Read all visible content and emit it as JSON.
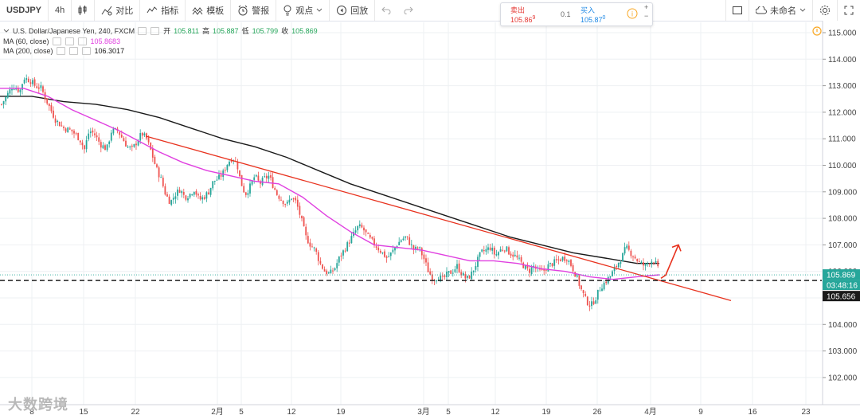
{
  "toolbar": {
    "symbol": "USDJPY",
    "interval": "4h",
    "compare_label": "对比",
    "indicators_label": "指标",
    "templates_label": "模板",
    "alert_label": "警报",
    "ideas_label": "观点",
    "replay_label": "回放",
    "layout_name": "未命名"
  },
  "trade": {
    "sell_label": "卖出",
    "sell_price": "105.86",
    "sell_sup": "9",
    "spread": "0.1",
    "buy_label": "买入",
    "buy_price": "105.87",
    "buy_sup": "0"
  },
  "legend": {
    "title": "U.S. Dollar/Japanese Yen, 240, FXCM",
    "open_label": "开",
    "open": "105.811",
    "high_label": "高",
    "high": "105.887",
    "low_label": "低",
    "low": "105.799",
    "close_label": "收",
    "close": "105.869",
    "ma60_label": "MA (60, close)",
    "ma60_value": "105.8683",
    "ma200_label": "MA (200, close)",
    "ma200_value": "106.3017"
  },
  "price_labels": {
    "last_price": "105.869",
    "countdown": "03:48:16",
    "line_price": "105.656"
  },
  "watermark": "大数跨境",
  "colors": {
    "up": "#26a69a",
    "down": "#ef5350",
    "ma60": "#e040e0",
    "ma200": "#1a1a1a",
    "trend": "#e8321e",
    "arrow": "#e8321e",
    "last_bg": "#26a69a",
    "line_bg": "#1a1a1a"
  },
  "chart_data": {
    "type": "candlestick",
    "y_axis": {
      "min": 101,
      "max": 115.2,
      "ticks": [
        "102.000",
        "103.000",
        "104.000",
        "105.000",
        "106.000",
        "107.000",
        "108.000",
        "109.000",
        "110.000",
        "111.000",
        "112.000",
        "113.000",
        "114.000",
        "115.000"
      ]
    },
    "x_axis": {
      "ticks": [
        "8",
        "15",
        "22",
        "2月",
        "5",
        "12",
        "19",
        "3月",
        "5",
        "12",
        "19",
        "26",
        "4月",
        "9",
        "16",
        "23"
      ]
    },
    "series": [
      {
        "name": "MA (60, close)",
        "last_value": 105.8683
      },
      {
        "name": "MA (200, close)",
        "last_value": 106.3017
      }
    ],
    "price_path": [
      [
        0,
        112.2
      ],
      [
        8,
        112.6
      ],
      [
        16,
        113.0
      ],
      [
        25,
        112.8
      ],
      [
        30,
        113.3
      ],
      [
        38,
        113.2
      ],
      [
        44,
        113.0
      ],
      [
        52,
        112.9
      ],
      [
        56,
        112.6
      ],
      [
        62,
        112.2
      ],
      [
        70,
        111.7
      ],
      [
        80,
        111.4
      ],
      [
        90,
        111.3
      ],
      [
        100,
        111.0
      ],
      [
        106,
        110.6
      ],
      [
        112,
        111.3
      ],
      [
        118,
        111.2
      ],
      [
        126,
        110.8
      ],
      [
        134,
        110.6
      ],
      [
        140,
        111.3
      ],
      [
        148,
        111.3
      ],
      [
        154,
        111.0
      ],
      [
        160,
        110.7
      ],
      [
        166,
        110.6
      ],
      [
        172,
        110.9
      ],
      [
        178,
        111.2
      ],
      [
        184,
        111.0
      ],
      [
        190,
        110.5
      ],
      [
        196,
        109.9
      ],
      [
        202,
        109.5
      ],
      [
        208,
        108.9
      ],
      [
        214,
        108.6
      ],
      [
        220,
        108.9
      ],
      [
        226,
        109.1
      ],
      [
        232,
        108.8
      ],
      [
        238,
        108.9
      ],
      [
        244,
        109.1
      ],
      [
        250,
        108.7
      ],
      [
        256,
        108.8
      ],
      [
        262,
        109.0
      ],
      [
        268,
        109.4
      ],
      [
        274,
        109.5
      ],
      [
        280,
        109.7
      ],
      [
        286,
        110.1
      ],
      [
        292,
        110.3
      ],
      [
        298,
        110.0
      ],
      [
        302,
        109.4
      ],
      [
        308,
        108.9
      ],
      [
        314,
        109.2
      ],
      [
        320,
        109.6
      ],
      [
        326,
        109.3
      ],
      [
        332,
        109.5
      ],
      [
        338,
        109.6
      ],
      [
        342,
        109.3
      ],
      [
        348,
        108.9
      ],
      [
        354,
        108.7
      ],
      [
        360,
        108.5
      ],
      [
        366,
        108.8
      ],
      [
        372,
        108.6
      ],
      [
        378,
        108.0
      ],
      [
        384,
        107.3
      ],
      [
        390,
        107.0
      ],
      [
        396,
        106.8
      ],
      [
        402,
        106.3
      ],
      [
        408,
        106.0
      ],
      [
        414,
        105.9
      ],
      [
        420,
        106.1
      ],
      [
        426,
        106.5
      ],
      [
        432,
        106.8
      ],
      [
        438,
        107.1
      ],
      [
        444,
        107.4
      ],
      [
        450,
        107.7
      ],
      [
        456,
        107.6
      ],
      [
        462,
        107.3
      ],
      [
        468,
        107.1
      ],
      [
        474,
        106.9
      ],
      [
        480,
        106.7
      ],
      [
        486,
        106.5
      ],
      [
        492,
        106.7
      ],
      [
        498,
        107.0
      ],
      [
        504,
        107.2
      ],
      [
        510,
        107.3
      ],
      [
        516,
        107.0
      ],
      [
        520,
        106.8
      ],
      [
        526,
        106.9
      ],
      [
        532,
        106.5
      ],
      [
        538,
        106.0
      ],
      [
        544,
        105.7
      ],
      [
        550,
        105.8
      ],
      [
        556,
        105.7
      ],
      [
        562,
        105.9
      ],
      [
        568,
        106.0
      ],
      [
        574,
        106.2
      ],
      [
        580,
        105.9
      ],
      [
        586,
        105.7
      ],
      [
        592,
        105.9
      ],
      [
        598,
        106.3
      ],
      [
        604,
        106.7
      ],
      [
        610,
        106.8
      ],
      [
        616,
        106.9
      ],
      [
        622,
        106.6
      ],
      [
        628,
        106.8
      ],
      [
        634,
        106.9
      ],
      [
        640,
        106.7
      ],
      [
        646,
        106.6
      ],
      [
        652,
        106.4
      ],
      [
        658,
        106.2
      ],
      [
        664,
        106.0
      ],
      [
        670,
        106.2
      ],
      [
        676,
        106.0
      ],
      [
        682,
        106.0
      ],
      [
        688,
        106.2
      ],
      [
        694,
        106.3
      ],
      [
        700,
        106.4
      ],
      [
        706,
        106.5
      ],
      [
        712,
        106.5
      ],
      [
        718,
        106.2
      ],
      [
        724,
        105.8
      ],
      [
        730,
        105.3
      ],
      [
        736,
        104.9
      ],
      [
        742,
        104.7
      ],
      [
        748,
        105.0
      ],
      [
        754,
        105.4
      ],
      [
        760,
        105.6
      ],
      [
        766,
        105.8
      ],
      [
        772,
        106.1
      ],
      [
        778,
        106.4
      ],
      [
        782,
        106.6
      ],
      [
        786,
        106.9
      ],
      [
        792,
        106.7
      ],
      [
        798,
        106.5
      ],
      [
        804,
        106.3
      ],
      [
        810,
        106.2
      ],
      [
        816,
        106.4
      ],
      [
        822,
        106.4
      ],
      [
        826,
        106.1
      ],
      [
        828,
        105.869
      ]
    ],
    "ma60_path": [
      [
        0,
        112.9
      ],
      [
        30,
        112.9
      ],
      [
        60,
        112.6
      ],
      [
        90,
        112.1
      ],
      [
        120,
        111.7
      ],
      [
        150,
        111.3
      ],
      [
        175,
        110.9
      ],
      [
        200,
        110.5
      ],
      [
        230,
        110.1
      ],
      [
        260,
        109.8
      ],
      [
        290,
        109.6
      ],
      [
        320,
        109.4
      ],
      [
        350,
        109.3
      ],
      [
        380,
        108.8
      ],
      [
        410,
        108.1
      ],
      [
        440,
        107.5
      ],
      [
        470,
        107.0
      ],
      [
        500,
        106.9
      ],
      [
        530,
        106.8
      ],
      [
        560,
        106.6
      ],
      [
        590,
        106.4
      ],
      [
        620,
        106.4
      ],
      [
        650,
        106.3
      ],
      [
        680,
        106.1
      ],
      [
        710,
        106.0
      ],
      [
        740,
        105.8
      ],
      [
        770,
        105.7
      ],
      [
        800,
        105.8
      ],
      [
        828,
        105.87
      ]
    ],
    "ma200_path": [
      [
        0,
        112.6
      ],
      [
        40,
        112.6
      ],
      [
        80,
        112.4
      ],
      [
        120,
        112.3
      ],
      [
        160,
        112.1
      ],
      [
        200,
        111.8
      ],
      [
        240,
        111.4
      ],
      [
        280,
        111.0
      ],
      [
        320,
        110.7
      ],
      [
        360,
        110.3
      ],
      [
        400,
        109.8
      ],
      [
        440,
        109.3
      ],
      [
        480,
        108.9
      ],
      [
        520,
        108.5
      ],
      [
        560,
        108.1
      ],
      [
        600,
        107.7
      ],
      [
        640,
        107.3
      ],
      [
        680,
        107.0
      ],
      [
        720,
        106.7
      ],
      [
        760,
        106.5
      ],
      [
        800,
        106.3
      ],
      [
        828,
        106.3
      ]
    ],
    "trendline": {
      "from": [
        183,
        111.1
      ],
      "to": [
        918,
        104.9
      ]
    },
    "support_level": 105.656,
    "arrow": {
      "from": [
        834,
        105.8
      ],
      "to": [
        852,
        107.0
      ]
    }
  }
}
